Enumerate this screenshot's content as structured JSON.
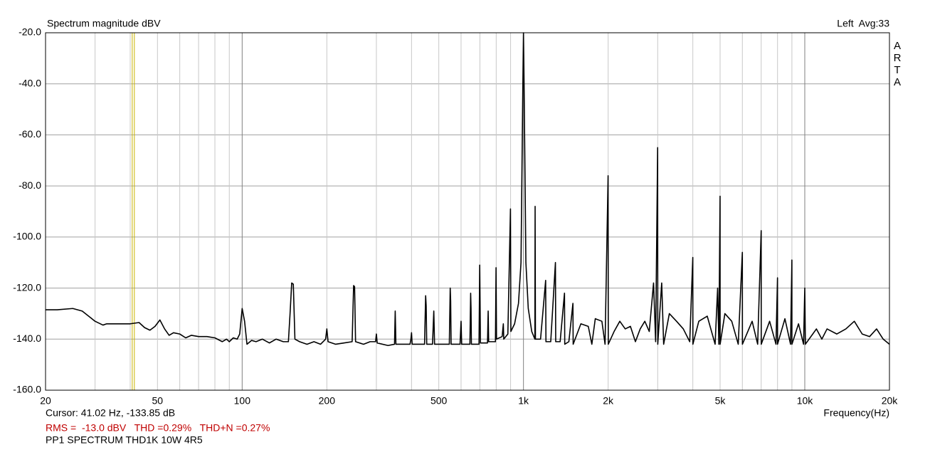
{
  "chart_data": {
    "type": "line",
    "title": "Spectrum magnitude dBV",
    "channel_info": "Left  Avg:33",
    "brand": "ARTA",
    "xlabel": "Frequency(Hz)",
    "cursor": {
      "x": 41.02,
      "label": "Cursor: 41.02 Hz, -133.85 dB",
      "color": "#c8b400"
    },
    "stats": "RMS =  -13.0 dBV   THD =0.29%   THD+N =0.27%",
    "caption": "PP1 SPECTRUM THD1K 10W 4R5",
    "xscale": "log",
    "grid": true,
    "color": "#000000",
    "xlim": [
      20,
      20000
    ],
    "ylim": [
      -160,
      -20
    ],
    "xticks": [
      20,
      50,
      100,
      200,
      500,
      {
        "value": 1000,
        "label": "1k"
      },
      {
        "value": 2000,
        "label": "2k"
      },
      {
        "value": 5000,
        "label": "5k"
      },
      {
        "value": 10000,
        "label": "10k"
      },
      {
        "value": 20000,
        "label": "20k"
      }
    ],
    "xminor": [
      30,
      40,
      60,
      70,
      80,
      90,
      300,
      400,
      600,
      700,
      800,
      900,
      3000,
      4000,
      6000,
      7000,
      8000,
      9000
    ],
    "yticks": [
      {
        "value": -20,
        "label": "-20.0"
      },
      {
        "value": -40,
        "label": "-40.0"
      },
      {
        "value": -60,
        "label": "-60.0"
      },
      {
        "value": -80,
        "label": "-80.0"
      },
      {
        "value": -100,
        "label": "-100.0"
      },
      {
        "value": -120,
        "label": "-120.0"
      },
      {
        "value": -140,
        "label": "-140.0"
      },
      {
        "value": -160,
        "label": "-160.0"
      }
    ],
    "x": [
      20,
      22,
      25,
      27,
      30,
      32,
      33,
      36,
      40,
      43,
      45,
      47,
      49,
      51,
      53,
      55,
      57,
      60,
      63,
      66,
      70,
      75,
      80,
      85,
      88,
      90,
      93,
      96,
      98,
      100,
      102,
      104,
      108,
      112,
      118,
      125,
      132,
      140,
      146,
      148,
      150,
      152,
      154,
      160,
      170,
      180,
      190,
      198,
      200,
      202,
      215,
      230,
      246,
      249,
      251,
      253,
      270,
      285,
      298,
      300,
      302,
      330,
      348,
      350,
      352,
      395,
      398,
      400,
      402,
      445,
      449,
      451,
      453,
      475,
      480,
      483,
      545,
      549,
      551,
      553,
      595,
      600,
      603,
      645,
      649,
      651,
      653,
      695,
      699,
      701,
      703,
      745,
      749,
      752,
      795,
      799,
      802,
      840,
      848,
      851,
      880,
      899,
      902,
      930,
      960,
      980,
      995,
      1000,
      1005,
      1020,
      1040,
      1070,
      1098,
      1100,
      1103,
      1150,
      1199,
      1202,
      1250,
      1299,
      1302,
      1350,
      1399,
      1402,
      1450,
      1499,
      1502,
      1600,
      1700,
      1750,
      1800,
      1900,
      1950,
      1999,
      2002,
      2100,
      2200,
      2300,
      2400,
      2500,
      2600,
      2700,
      2800,
      2900,
      2950,
      2999,
      3002,
      3100,
      3150,
      3300,
      3500,
      3700,
      3900,
      3999,
      4002,
      4200,
      4500,
      4800,
      4900,
      4950,
      4999,
      5002,
      5200,
      5500,
      5800,
      5999,
      6002,
      6500,
      6800,
      6999,
      7002,
      7500,
      7900,
      7999,
      8002,
      8500,
      8900,
      8999,
      9002,
      9500,
      9900,
      10000,
      10050,
      11000,
      11500,
      12000,
      13000,
      14000,
      15000,
      16000,
      17000,
      18000,
      19000,
      20000
    ],
    "values": [
      -128.5,
      -128.5,
      -128,
      -129,
      -133,
      -134.5,
      -134,
      -134,
      -134,
      -133.5,
      -135.5,
      -136.5,
      -135,
      -132.5,
      -136,
      -138.5,
      -137.5,
      -138,
      -139.5,
      -138.5,
      -139,
      -139,
      -139.5,
      -141,
      -140,
      -141,
      -139.5,
      -140,
      -138,
      -128,
      -133,
      -142,
      -140.5,
      -141,
      -140,
      -141.5,
      -140,
      -141,
      -141,
      -130,
      -118,
      -118.5,
      -140,
      -141,
      -142,
      -141,
      -142,
      -140,
      -136,
      -141,
      -142,
      -141.5,
      -141,
      -119,
      -119.5,
      -141,
      -142,
      -141,
      -141,
      -138,
      -141.5,
      -142.5,
      -142,
      -129,
      -142,
      -142,
      -140,
      -137.5,
      -142,
      -142,
      -123,
      -127,
      -142,
      -142,
      -129,
      -142,
      -142,
      -120,
      -125,
      -142,
      -142,
      -133,
      -142,
      -142,
      -122,
      -128,
      -142,
      -142,
      -111,
      -125,
      -141.5,
      -141.5,
      -129,
      -141,
      -141,
      -112,
      -140,
      -139,
      -134,
      -140,
      -138,
      -89,
      -137,
      -134,
      -126,
      -110,
      -40,
      -20,
      -40,
      -110,
      -128,
      -137,
      -140,
      -88,
      -140,
      -140,
      -117,
      -141,
      -141,
      -110,
      -141,
      -141,
      -122,
      -142,
      -141,
      -126,
      -142,
      -134,
      -135,
      -142,
      -132,
      -133,
      -142,
      -76,
      -142,
      -137,
      -133,
      -136,
      -135,
      -141,
      -136,
      -133,
      -137,
      -118,
      -141,
      -65,
      -142,
      -118,
      -142,
      -130,
      -133,
      -136,
      -141,
      -108,
      -142,
      -133,
      -131,
      -142,
      -120,
      -142,
      -84,
      -142,
      -130,
      -133,
      -142,
      -106,
      -142,
      -133,
      -142,
      -97.5,
      -142,
      -133,
      -142,
      -116,
      -142,
      -132,
      -142,
      -109,
      -142,
      -134,
      -142,
      -120,
      -142,
      -136,
      -140,
      -136,
      -138,
      -136,
      -133,
      -138,
      -139,
      -136,
      -140,
      -142
    ]
  }
}
